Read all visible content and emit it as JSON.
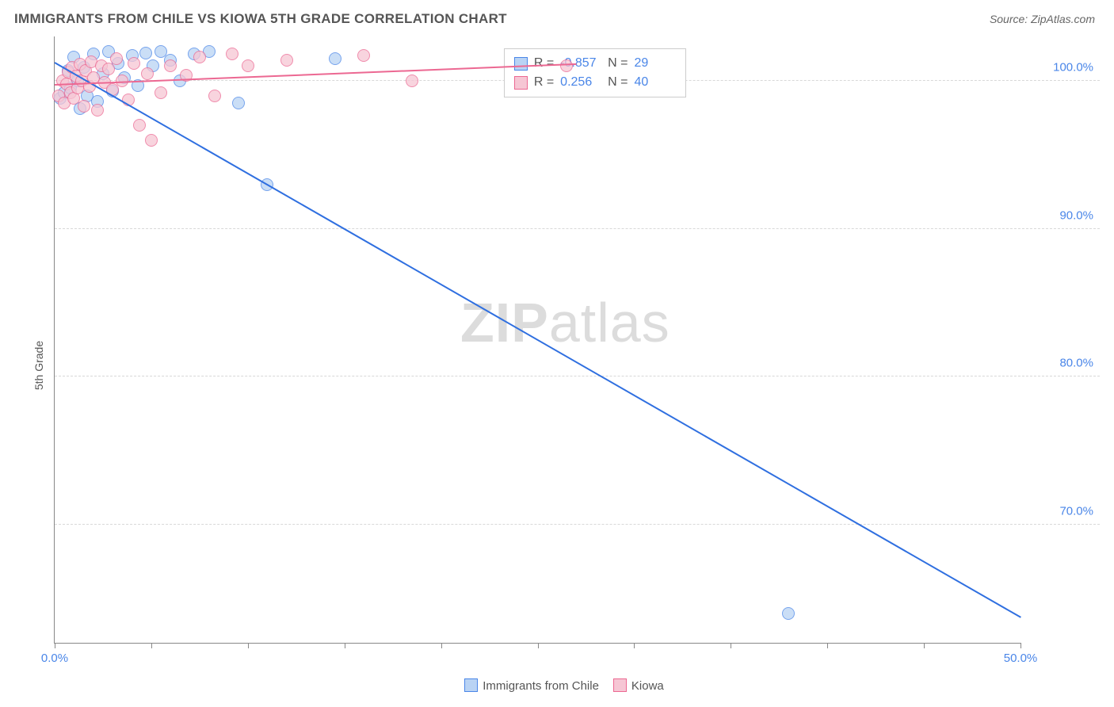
{
  "title": "IMMIGRANTS FROM CHILE VS KIOWA 5TH GRADE CORRELATION CHART",
  "source": "Source: ZipAtlas.com",
  "y_axis_label": "5th Grade",
  "watermark": {
    "bold": "ZIP",
    "rest": "atlas"
  },
  "chart": {
    "type": "scatter",
    "xlim": [
      0,
      50
    ],
    "ylim": [
      62,
      103
    ],
    "background_color": "#ffffff",
    "grid_color": "#d8d8d8",
    "axis_color": "#888888",
    "x_ticks": [
      0,
      5,
      10,
      15,
      20,
      25,
      30,
      35,
      40,
      45,
      50
    ],
    "x_tick_labels": [
      {
        "pos": 0,
        "label": "0.0%"
      },
      {
        "pos": 50,
        "label": "50.0%"
      }
    ],
    "y_gridlines": [
      70,
      80,
      90,
      100
    ],
    "y_tick_labels": [
      {
        "pos": 70,
        "label": "70.0%"
      },
      {
        "pos": 80,
        "label": "80.0%"
      },
      {
        "pos": 90,
        "label": "90.0%"
      },
      {
        "pos": 100,
        "label": "100.0%"
      }
    ],
    "series": [
      {
        "name": "Immigrants from Chile",
        "fill": "#b9d3f4",
        "stroke": "#4a86e8",
        "marker_radius": 8,
        "trend": {
          "x1": 0,
          "y1": 101.3,
          "x2": 50,
          "y2": 63.8,
          "color": "#2f6fe0",
          "width": 2
        },
        "points": [
          [
            0.3,
            98.8
          ],
          [
            0.5,
            99.2
          ],
          [
            0.7,
            100.7
          ],
          [
            0.8,
            99.5
          ],
          [
            1.0,
            101.6
          ],
          [
            1.2,
            100.0
          ],
          [
            1.3,
            98.1
          ],
          [
            1.5,
            100.9
          ],
          [
            1.7,
            99.0
          ],
          [
            2.0,
            101.8
          ],
          [
            2.2,
            98.6
          ],
          [
            2.5,
            100.5
          ],
          [
            2.8,
            102.0
          ],
          [
            3.0,
            99.3
          ],
          [
            3.3,
            101.2
          ],
          [
            3.6,
            100.2
          ],
          [
            4.0,
            101.7
          ],
          [
            4.3,
            99.7
          ],
          [
            4.7,
            101.9
          ],
          [
            5.1,
            101.0
          ],
          [
            5.5,
            102.0
          ],
          [
            6.0,
            101.4
          ],
          [
            6.5,
            100.0
          ],
          [
            7.2,
            101.8
          ],
          [
            8.0,
            102.0
          ],
          [
            9.5,
            98.5
          ],
          [
            11.0,
            93.0
          ],
          [
            14.5,
            101.5
          ],
          [
            38.0,
            64.0
          ]
        ]
      },
      {
        "name": "Kiowa",
        "fill": "#f6c6d4",
        "stroke": "#ec6892",
        "marker_radius": 8,
        "trend": {
          "x1": 0,
          "y1": 99.8,
          "x2": 27,
          "y2": 101.2,
          "color": "#ec6892",
          "width": 2
        },
        "points": [
          [
            0.2,
            99.0
          ],
          [
            0.4,
            100.0
          ],
          [
            0.5,
            98.5
          ],
          [
            0.6,
            99.8
          ],
          [
            0.7,
            100.6
          ],
          [
            0.8,
            99.2
          ],
          [
            0.9,
            100.9
          ],
          [
            1.0,
            98.8
          ],
          [
            1.1,
            100.3
          ],
          [
            1.2,
            99.5
          ],
          [
            1.3,
            101.1
          ],
          [
            1.4,
            100.0
          ],
          [
            1.5,
            98.3
          ],
          [
            1.6,
            100.7
          ],
          [
            1.8,
            99.6
          ],
          [
            1.9,
            101.3
          ],
          [
            2.0,
            100.2
          ],
          [
            2.2,
            98.0
          ],
          [
            2.4,
            101.0
          ],
          [
            2.6,
            99.9
          ],
          [
            2.8,
            100.8
          ],
          [
            3.0,
            99.4
          ],
          [
            3.2,
            101.5
          ],
          [
            3.5,
            100.0
          ],
          [
            3.8,
            98.7
          ],
          [
            4.1,
            101.2
          ],
          [
            4.4,
            97.0
          ],
          [
            4.8,
            100.5
          ],
          [
            5.0,
            96.0
          ],
          [
            5.5,
            99.2
          ],
          [
            6.0,
            101.0
          ],
          [
            6.8,
            100.4
          ],
          [
            7.5,
            101.6
          ],
          [
            8.3,
            99.0
          ],
          [
            9.2,
            101.8
          ],
          [
            10.0,
            101.0
          ],
          [
            12.0,
            101.4
          ],
          [
            16.0,
            101.7
          ],
          [
            18.5,
            100.0
          ],
          [
            26.5,
            101.0
          ]
        ]
      }
    ],
    "legend_stats": {
      "left_pct": 46.5,
      "top_pct": 2.0,
      "rows": [
        {
          "swatch_fill": "#b9d3f4",
          "swatch_stroke": "#4a86e8",
          "r_label": "R =",
          "r_val": "-0.857",
          "n_label": "N =",
          "n_val": "29"
        },
        {
          "swatch_fill": "#f6c6d4",
          "swatch_stroke": "#ec6892",
          "r_label": "R =",
          "r_val": "0.256",
          "n_label": "N =",
          "n_val": "40"
        }
      ]
    },
    "bottom_legend": [
      {
        "swatch_fill": "#b9d3f4",
        "swatch_stroke": "#4a86e8",
        "label": "Immigrants from Chile"
      },
      {
        "swatch_fill": "#f6c6d4",
        "swatch_stroke": "#ec6892",
        "label": "Kiowa"
      }
    ]
  }
}
